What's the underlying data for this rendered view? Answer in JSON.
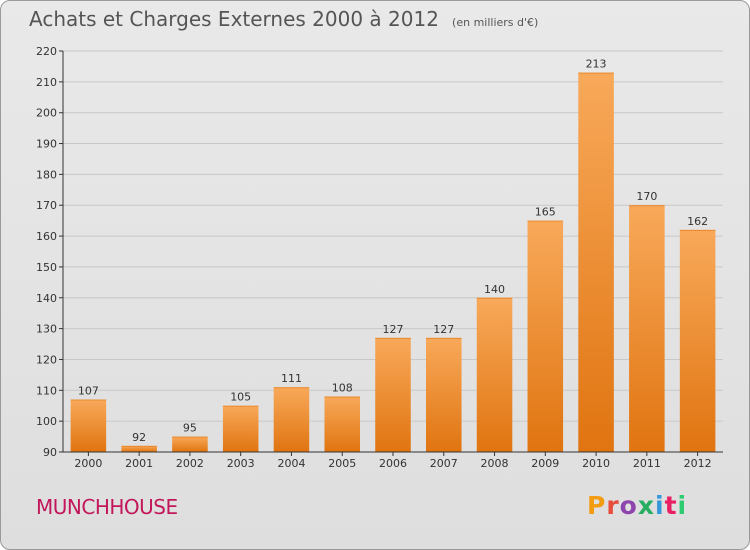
{
  "title": "Achats et Charges Externes 2000 à 2012",
  "subtitle": "(en milliers d'€)",
  "place": "MUNCHHOUSE",
  "logo": {
    "text": "Proxiti",
    "colors": [
      "#f39c12",
      "#e74c3c",
      "#8e44ad",
      "#27ae60",
      "#3498db",
      "#e91e63",
      "#2ecc71"
    ]
  },
  "colors": {
    "bar_top": "#f8a95a",
    "bar_bottom": "#e07410",
    "grid": "#c8c8c8",
    "axis": "#333333",
    "place": "#c2185b"
  },
  "chart_data": {
    "type": "bar",
    "title": "Achats et Charges Externes 2000 à 2012",
    "subtitle": "(en milliers d'€)",
    "xlabel": "",
    "ylabel": "",
    "categories": [
      "2000",
      "2001",
      "2002",
      "2003",
      "2004",
      "2005",
      "2006",
      "2007",
      "2008",
      "2009",
      "2010",
      "2011",
      "2012"
    ],
    "values": [
      107,
      92,
      95,
      105,
      111,
      108,
      127,
      127,
      140,
      165,
      213,
      170,
      162
    ],
    "ylim": [
      90,
      220
    ],
    "yticks": [
      90,
      100,
      110,
      120,
      130,
      140,
      150,
      160,
      170,
      180,
      190,
      200,
      210,
      220
    ],
    "grid": true,
    "legend": "none"
  }
}
